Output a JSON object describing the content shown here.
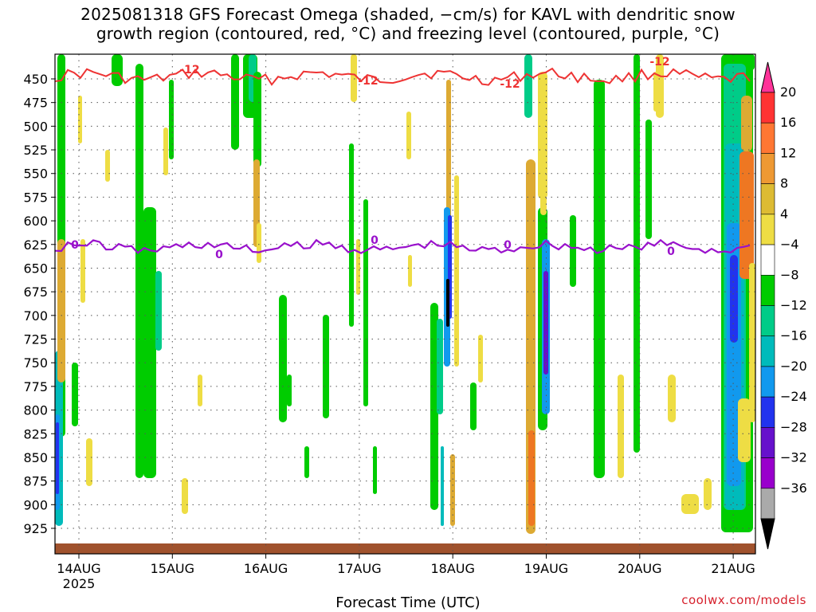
{
  "title_line1": "2025081318 GFS Forecast Omega (shaded, −cm/s) for KAVL with dendritic snow",
  "title_line2": "growth region (contoured, red, °C) and freezing level (contoured, purple, °C)",
  "credit": "coolwx.com/models",
  "chart_data": {
    "type": "heatmap",
    "xlabel": "Forecast Time (UTC)",
    "ylabel": "",
    "x_ticks": [
      {
        "label": "14AUG",
        "sub": "2025"
      },
      {
        "label": "15AUG",
        "sub": ""
      },
      {
        "label": "16AUG",
        "sub": ""
      },
      {
        "label": "17AUG",
        "sub": ""
      },
      {
        "label": "18AUG",
        "sub": ""
      },
      {
        "label": "19AUG",
        "sub": ""
      },
      {
        "label": "20AUG",
        "sub": ""
      },
      {
        "label": "21AUG",
        "sub": ""
      }
    ],
    "y_ticks": [
      "450",
      "475",
      "500",
      "525",
      "550",
      "575",
      "600",
      "625",
      "650",
      "675",
      "700",
      "725",
      "750",
      "775",
      "800",
      "825",
      "850",
      "875",
      "900",
      "925"
    ],
    "colorbar": {
      "labels": [
        "20",
        "16",
        "12",
        "8",
        "4",
        "−4",
        "−8",
        "−12",
        "−16",
        "−20",
        "−24",
        "−28",
        "−32",
        "−36"
      ],
      "colors": [
        "#ff3399",
        "#ff3333",
        "#ff7733",
        "#ee9933",
        "#ddbb33",
        "#eedd44",
        "#ffffff",
        "#00cc00",
        "#00cc88",
        "#00bbbb",
        "#1199ee",
        "#2233ee",
        "#6611cc",
        "#9900cc",
        "#aaaaaa",
        "#000000"
      ]
    },
    "contours": {
      "snow_growth_label": "-12",
      "freezing_label": "0",
      "snow_growth_color": "#ee3333",
      "freezing_color": "#9911cc"
    }
  }
}
